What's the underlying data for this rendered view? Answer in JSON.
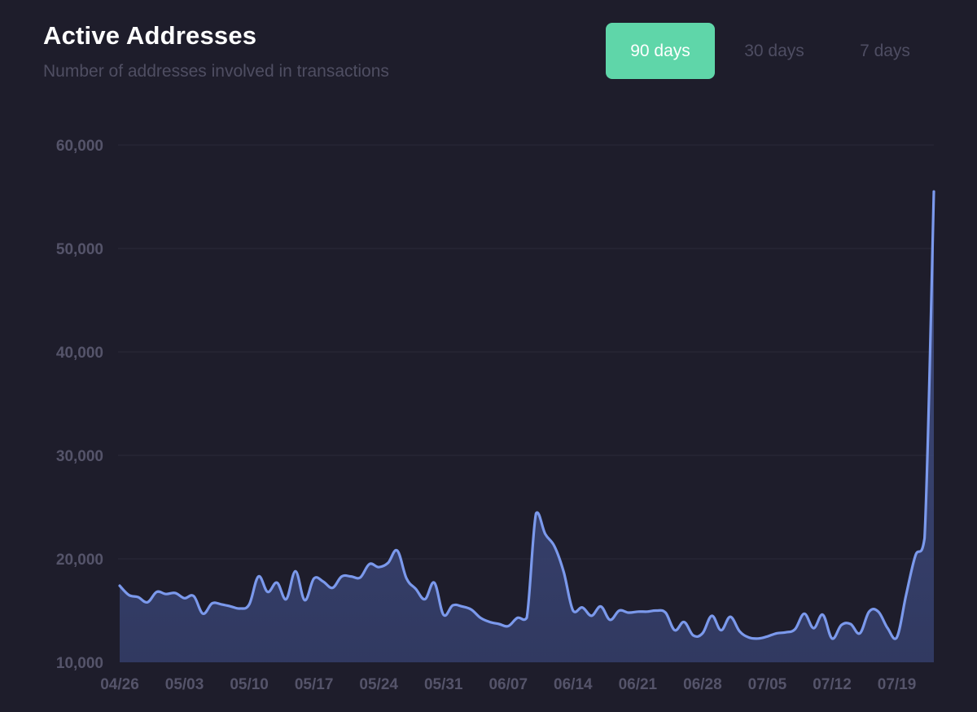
{
  "header": {
    "title": "Active Addresses",
    "subtitle": "Number of addresses involved in transactions"
  },
  "range_tabs": [
    {
      "label": "90 days",
      "active": true
    },
    {
      "label": "30 days",
      "active": false
    },
    {
      "label": "7 days",
      "active": false
    }
  ],
  "colors": {
    "background": "#1e1d2b",
    "accent": "#5fd6a9",
    "line": "#7b99ec",
    "area": "#3a4575",
    "gridline": "#2a2939",
    "axis_text": "#55546a"
  },
  "chart_data": {
    "type": "area",
    "title": "Active Addresses",
    "subtitle": "Number of addresses involved in transactions",
    "xlabel": "",
    "ylabel": "",
    "x_start": "2020-04-26",
    "x_end": "2020-07-23",
    "ylim": [
      10000,
      60000
    ],
    "y_ticks": [
      10000,
      20000,
      30000,
      40000,
      50000,
      60000
    ],
    "y_tick_labels": [
      "10,000",
      "20,000",
      "30,000",
      "40,000",
      "50,000",
      "60,000"
    ],
    "x_ticks": [
      "2020-04-26",
      "2020-05-03",
      "2020-05-10",
      "2020-05-17",
      "2020-05-24",
      "2020-05-31",
      "2020-06-07",
      "2020-06-14",
      "2020-06-21",
      "2020-06-28",
      "2020-07-05",
      "2020-07-12",
      "2020-07-19"
    ],
    "x_tick_labels": [
      "04/26",
      "05/03",
      "05/10",
      "05/17",
      "05/24",
      "05/31",
      "06/07",
      "06/14",
      "06/21",
      "06/28",
      "07/05",
      "07/12",
      "07/19"
    ],
    "grid": "horizontal",
    "series": [
      {
        "name": "",
        "points": [
          [
            "2020-04-26",
            17400
          ],
          [
            "2020-04-27",
            16500
          ],
          [
            "2020-04-28",
            16300
          ],
          [
            "2020-04-29",
            15800
          ],
          [
            "2020-04-30",
            16800
          ],
          [
            "2020-05-01",
            16600
          ],
          [
            "2020-05-02",
            16700
          ],
          [
            "2020-05-03",
            16200
          ],
          [
            "2020-05-04",
            16400
          ],
          [
            "2020-05-05",
            14700
          ],
          [
            "2020-05-06",
            15700
          ],
          [
            "2020-05-07",
            15600
          ],
          [
            "2020-05-08",
            15400
          ],
          [
            "2020-05-09",
            15200
          ],
          [
            "2020-05-10",
            15600
          ],
          [
            "2020-05-11",
            18300
          ],
          [
            "2020-05-12",
            16800
          ],
          [
            "2020-05-13",
            17700
          ],
          [
            "2020-05-14",
            16100
          ],
          [
            "2020-05-15",
            18800
          ],
          [
            "2020-05-16",
            16000
          ],
          [
            "2020-05-17",
            18100
          ],
          [
            "2020-05-18",
            17800
          ],
          [
            "2020-05-19",
            17200
          ],
          [
            "2020-05-20",
            18300
          ],
          [
            "2020-05-21",
            18300
          ],
          [
            "2020-05-22",
            18200
          ],
          [
            "2020-05-23",
            19500
          ],
          [
            "2020-05-24",
            19200
          ],
          [
            "2020-05-25",
            19600
          ],
          [
            "2020-05-26",
            20800
          ],
          [
            "2020-05-27",
            18100
          ],
          [
            "2020-05-28",
            17100
          ],
          [
            "2020-05-29",
            16100
          ],
          [
            "2020-05-30",
            17700
          ],
          [
            "2020-05-31",
            14600
          ],
          [
            "2020-06-01",
            15500
          ],
          [
            "2020-06-02",
            15400
          ],
          [
            "2020-06-03",
            15100
          ],
          [
            "2020-06-04",
            14300
          ],
          [
            "2020-06-05",
            13900
          ],
          [
            "2020-06-06",
            13700
          ],
          [
            "2020-06-07",
            13500
          ],
          [
            "2020-06-08",
            14300
          ],
          [
            "2020-06-09",
            14300
          ],
          [
            "2020-06-10",
            24400
          ],
          [
            "2020-06-11",
            22400
          ],
          [
            "2020-06-12",
            21200
          ],
          [
            "2020-06-13",
            18700
          ],
          [
            "2020-06-14",
            15000
          ],
          [
            "2020-06-15",
            15300
          ],
          [
            "2020-06-16",
            14500
          ],
          [
            "2020-06-17",
            15400
          ],
          [
            "2020-06-18",
            14100
          ],
          [
            "2020-06-19",
            15000
          ],
          [
            "2020-06-20",
            14800
          ],
          [
            "2020-06-21",
            14900
          ],
          [
            "2020-06-22",
            14900
          ],
          [
            "2020-06-23",
            15000
          ],
          [
            "2020-06-24",
            14800
          ],
          [
            "2020-06-25",
            13100
          ],
          [
            "2020-06-26",
            13900
          ],
          [
            "2020-06-27",
            12600
          ],
          [
            "2020-06-28",
            12800
          ],
          [
            "2020-06-29",
            14500
          ],
          [
            "2020-06-30",
            13100
          ],
          [
            "2020-07-01",
            14400
          ],
          [
            "2020-07-02",
            13000
          ],
          [
            "2020-07-03",
            12400
          ],
          [
            "2020-07-04",
            12300
          ],
          [
            "2020-07-05",
            12500
          ],
          [
            "2020-07-06",
            12800
          ],
          [
            "2020-07-07",
            12900
          ],
          [
            "2020-07-08",
            13200
          ],
          [
            "2020-07-09",
            14700
          ],
          [
            "2020-07-10",
            13300
          ],
          [
            "2020-07-11",
            14600
          ],
          [
            "2020-07-12",
            12300
          ],
          [
            "2020-07-13",
            13600
          ],
          [
            "2020-07-14",
            13700
          ],
          [
            "2020-07-15",
            12800
          ],
          [
            "2020-07-16",
            14900
          ],
          [
            "2020-07-17",
            14900
          ],
          [
            "2020-07-18",
            13300
          ],
          [
            "2020-07-19",
            12400
          ],
          [
            "2020-07-20",
            16500
          ],
          [
            "2020-07-21",
            20300
          ],
          [
            "2020-07-22",
            22000
          ],
          [
            "2020-07-23",
            55500
          ]
        ]
      }
    ]
  }
}
